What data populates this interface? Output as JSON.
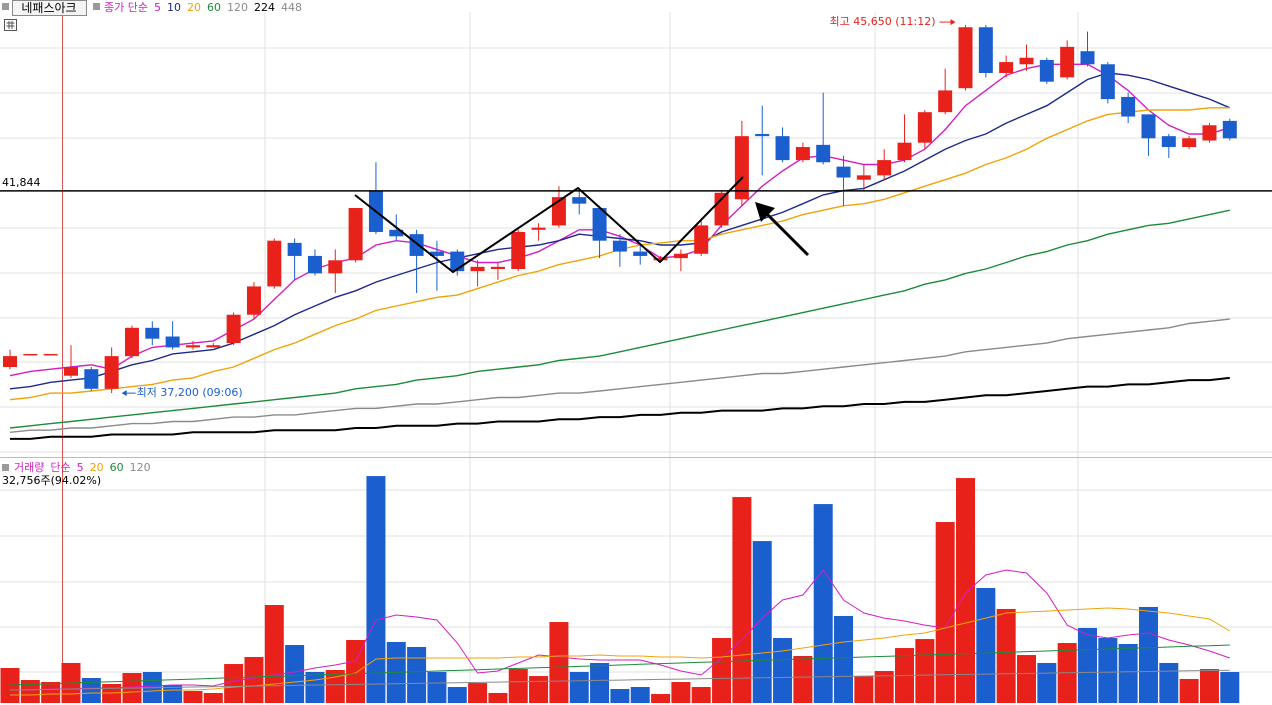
{
  "chart_data": [
    {
      "type": "candlestick",
      "name": "네패스아크",
      "legend_title": "종가 단순",
      "open": [
        37800,
        38100,
        38100,
        37600,
        37750,
        37300,
        38050,
        38700,
        38500,
        38250,
        38250,
        38350,
        39000,
        39650,
        40650,
        40350,
        39950,
        40250,
        41850,
        40950,
        40850,
        40450,
        40450,
        40000,
        40050,
        40050,
        40950,
        41050,
        41700,
        41450,
        40700,
        40450,
        40250,
        40300,
        40400,
        41050,
        41650,
        43150,
        43100,
        42550,
        42900,
        42400,
        42100,
        42200,
        42550,
        42950,
        43650,
        44200,
        45600,
        44550,
        44750,
        44850,
        44450,
        45050,
        44750,
        44000,
        43600,
        43100,
        42850,
        43000,
        43450
      ],
      "high": [
        38200,
        38100,
        38100,
        38300,
        37800,
        38250,
        38750,
        38850,
        38850,
        38400,
        38350,
        39050,
        39750,
        40750,
        40750,
        40500,
        40500,
        41450,
        42500,
        41300,
        40950,
        40700,
        40500,
        40250,
        40200,
        40950,
        41100,
        41950,
        41900,
        41500,
        40850,
        40650,
        40350,
        40500,
        41150,
        41850,
        43450,
        43800,
        43300,
        42950,
        44100,
        42650,
        42450,
        42800,
        43600,
        43700,
        44650,
        45650,
        45650,
        44950,
        45200,
        44900,
        45300,
        45500,
        44800,
        44100,
        43600,
        43150,
        43100,
        43400,
        43500
      ],
      "low": [
        37750,
        38100,
        38100,
        37550,
        37250,
        37200,
        38000,
        38300,
        38200,
        38200,
        38250,
        38300,
        38900,
        39600,
        39800,
        39900,
        39500,
        40200,
        40850,
        40700,
        39500,
        39550,
        39900,
        39650,
        39800,
        40000,
        40700,
        41000,
        41300,
        40300,
        40100,
        40150,
        40200,
        40000,
        40350,
        41000,
        41500,
        42200,
        42500,
        42500,
        42450,
        41500,
        41850,
        42100,
        42500,
        42800,
        43600,
        44150,
        44450,
        44450,
        44600,
        44300,
        44400,
        44700,
        43850,
        43400,
        42650,
        42600,
        42800,
        42950,
        43000
      ],
      "close": [
        38050,
        38100,
        38100,
        37800,
        37300,
        38050,
        38700,
        38450,
        38250,
        38300,
        38300,
        39000,
        39650,
        40700,
        40350,
        39950,
        40250,
        41450,
        40900,
        40800,
        40350,
        40350,
        40000,
        40100,
        40100,
        40900,
        41000,
        41700,
        41550,
        40700,
        40450,
        40350,
        40300,
        40400,
        41050,
        41800,
        43100,
        43100,
        42550,
        42850,
        42500,
        42150,
        42200,
        42550,
        42950,
        43650,
        44150,
        45600,
        44550,
        44800,
        44900,
        44350,
        45150,
        44750,
        43950,
        43550,
        43050,
        42850,
        43050,
        43350,
        43050
      ],
      "series": [
        {
          "name": "5",
          "color": "#d21ec3",
          "values": [
            37600,
            37700,
            37750,
            37800,
            37850,
            37750,
            38050,
            38250,
            38300,
            38350,
            38400,
            38650,
            38900,
            39350,
            39800,
            40050,
            40200,
            40300,
            40600,
            40700,
            40650,
            40500,
            40350,
            40200,
            40200,
            40300,
            40450,
            40700,
            40950,
            40950,
            40800,
            40600,
            40300,
            40350,
            40500,
            41050,
            41500,
            41950,
            42300,
            42600,
            42650,
            42550,
            42450,
            42450,
            42550,
            42800,
            43250,
            43800,
            44150,
            44500,
            44650,
            44750,
            44750,
            44750,
            44500,
            44150,
            43700,
            43350,
            43150,
            43150,
            43300
          ]
        },
        {
          "name": "10",
          "color": "#1c2a8c",
          "values": [
            37300,
            37350,
            37450,
            37500,
            37550,
            37700,
            37850,
            37950,
            38100,
            38150,
            38200,
            38350,
            38550,
            38750,
            39000,
            39200,
            39400,
            39550,
            39750,
            39900,
            40050,
            40200,
            40300,
            40400,
            40500,
            40550,
            40600,
            40700,
            40850,
            40800,
            40750,
            40700,
            40600,
            40600,
            40650,
            40900,
            41050,
            41200,
            41350,
            41550,
            41750,
            41850,
            41900,
            42100,
            42300,
            42550,
            42800,
            43000,
            43150,
            43400,
            43600,
            43800,
            44100,
            44400,
            44550,
            44500,
            44400,
            44250,
            44100,
            43950,
            43750
          ]
        },
        {
          "name": "20",
          "color": "#f0a30a",
          "values": [
            37050,
            37100,
            37200,
            37200,
            37250,
            37300,
            37350,
            37400,
            37500,
            37550,
            37700,
            37800,
            38000,
            38200,
            38350,
            38550,
            38750,
            38900,
            39100,
            39200,
            39300,
            39400,
            39450,
            39600,
            39750,
            39900,
            40000,
            40150,
            40250,
            40350,
            40500,
            40600,
            40650,
            40700,
            40700,
            40850,
            40950,
            41050,
            41150,
            41300,
            41400,
            41500,
            41550,
            41650,
            41800,
            41950,
            42100,
            42250,
            42450,
            42600,
            42800,
            43050,
            43250,
            43450,
            43600,
            43650,
            43700,
            43700,
            43700,
            43750,
            43750
          ]
        },
        {
          "name": "60",
          "color": "#1e8a3c",
          "values": [
            36400,
            36450,
            36500,
            36550,
            36600,
            36650,
            36700,
            36750,
            36800,
            36850,
            36900,
            36950,
            37000,
            37050,
            37100,
            37150,
            37200,
            37300,
            37350,
            37400,
            37500,
            37550,
            37600,
            37700,
            37750,
            37800,
            37850,
            37950,
            38000,
            38050,
            38150,
            38250,
            38350,
            38450,
            38550,
            38650,
            38750,
            38850,
            38950,
            39050,
            39150,
            39250,
            39350,
            39450,
            39550,
            39700,
            39800,
            39950,
            40050,
            40200,
            40350,
            40450,
            40600,
            40700,
            40850,
            40950,
            41050,
            41100,
            41200,
            41300,
            41400
          ]
        },
        {
          "name": "120",
          "color": "#8a8a8a",
          "values": [
            36300,
            36350,
            36350,
            36400,
            36400,
            36450,
            36500,
            36500,
            36550,
            36550,
            36600,
            36650,
            36650,
            36700,
            36700,
            36750,
            36800,
            36850,
            36850,
            36900,
            36950,
            36950,
            37000,
            37050,
            37100,
            37100,
            37150,
            37200,
            37200,
            37250,
            37300,
            37350,
            37400,
            37450,
            37500,
            37550,
            37600,
            37650,
            37650,
            37700,
            37750,
            37800,
            37850,
            37900,
            37950,
            38000,
            38050,
            38150,
            38200,
            38250,
            38300,
            38350,
            38450,
            38500,
            38550,
            38600,
            38650,
            38700,
            38800,
            38850,
            38900
          ]
        },
        {
          "name": "224",
          "color": "#000000",
          "values": [
            36150,
            36150,
            36200,
            36200,
            36200,
            36250,
            36250,
            36250,
            36250,
            36300,
            36300,
            36300,
            36300,
            36350,
            36350,
            36350,
            36350,
            36400,
            36400,
            36450,
            36450,
            36450,
            36500,
            36500,
            36550,
            36550,
            36550,
            36600,
            36600,
            36650,
            36650,
            36700,
            36700,
            36750,
            36750,
            36800,
            36800,
            36800,
            36850,
            36850,
            36900,
            36900,
            36950,
            36950,
            37000,
            37000,
            37050,
            37100,
            37150,
            37150,
            37200,
            37250,
            37300,
            37350,
            37350,
            37400,
            37400,
            37450,
            37500,
            37500,
            37550
          ]
        }
      ],
      "inactive_series": [
        {
          "name": "448",
          "color": "#8a8a8a"
        }
      ],
      "up_color": "#e8221b",
      "down_color": "#1b5fcf",
      "ylim": [
        35780,
        45950
      ],
      "reference_line": {
        "value": 41844,
        "label": "41,844"
      },
      "high_annotation": "최고 45,650 (11:12)",
      "low_annotation": "최저 37,200 (09:06)"
    },
    {
      "type": "bar",
      "title": "거래량",
      "legend_title": "단순",
      "current_label": "32,756주(94.02%)",
      "values": [
        37000,
        24300,
        22200,
        42300,
        26400,
        20100,
        31700,
        32800,
        19000,
        12700,
        10600,
        41200,
        48600,
        103600,
        61300,
        32800,
        34900,
        66600,
        239900,
        64500,
        59200,
        32800,
        16900,
        21100,
        10600,
        35900,
        28500,
        85600,
        32800,
        42300,
        14800,
        16900,
        9500,
        22200,
        16900,
        68700,
        217700,
        171200,
        68700,
        49700,
        210300,
        92000,
        28500,
        33800,
        58100,
        67600,
        191300,
        237800,
        121600,
        99400,
        50700,
        42300,
        63400,
        79300,
        68700,
        62400,
        101500,
        42300,
        25400,
        35900,
        32756
      ],
      "series": [
        {
          "name": "5",
          "color": "#d21ec3",
          "values": [
            13700,
            13700,
            14800,
            14800,
            15900,
            15900,
            16900,
            18000,
            19000,
            19000,
            18000,
            23300,
            26400,
            29600,
            32800,
            37000,
            40200,
            44400,
            87700,
            93000,
            90900,
            87700,
            63400,
            31700,
            33800,
            42300,
            50700,
            48600,
            46500,
            45500,
            45500,
            45500,
            40200,
            33800,
            29600,
            47600,
            66600,
            89800,
            108900,
            114200,
            140600,
            108900,
            95100,
            89800,
            86700,
            82400,
            79300,
            116300,
            135300,
            140600,
            137400,
            116300,
            82400,
            71900,
            68700,
            71900,
            74000,
            66600,
            61300,
            55000,
            47600
          ]
        },
        {
          "name": "20",
          "color": "#f0a30a",
          "values": [
            8500,
            8500,
            9500,
            9500,
            10600,
            10600,
            11600,
            12700,
            13700,
            13700,
            14800,
            16900,
            18000,
            20100,
            22200,
            24300,
            27500,
            31700,
            46500,
            47600,
            47600,
            47600,
            47600,
            47600,
            47600,
            48600,
            48600,
            49700,
            49700,
            50700,
            49700,
            49700,
            48600,
            48600,
            47600,
            48600,
            50700,
            52900,
            55000,
            58100,
            61300,
            64500,
            66600,
            68700,
            71900,
            74000,
            79300,
            84600,
            89800,
            95100,
            96200,
            97200,
            98300,
            99400,
            100400,
            99400,
            97200,
            95100,
            92000,
            88800,
            76100
          ]
        },
        {
          "name": "60",
          "color": "#1e8a3c",
          "values": [
            19000,
            19700,
            20400,
            21100,
            21800,
            22500,
            23200,
            23900,
            24600,
            25300,
            26000,
            26800,
            27500,
            28200,
            28900,
            29600,
            30300,
            31000,
            31700,
            32400,
            33100,
            33800,
            34500,
            35200,
            35900,
            36600,
            37300,
            38000,
            38700,
            39400,
            40200,
            40900,
            41600,
            42300,
            43000,
            43700,
            44400,
            45100,
            45800,
            46500,
            47200,
            47900,
            48600,
            49300,
            50000,
            50700,
            51400,
            52100,
            52800,
            53500,
            54300,
            55000,
            55700,
            56400,
            57100,
            57800,
            58500,
            59200,
            59900,
            60600,
            61300
          ]
        },
        {
          "name": "120",
          "color": "#8a8a8a",
          "values": [
            13700,
            14100,
            14400,
            14800,
            15100,
            15500,
            15800,
            16200,
            16500,
            16900,
            17200,
            17600,
            17900,
            18300,
            18600,
            19000,
            19300,
            19700,
            20000,
            20400,
            20700,
            21100,
            21400,
            21800,
            22100,
            22500,
            22800,
            23200,
            23500,
            23900,
            24200,
            24600,
            24900,
            25300,
            25600,
            26000,
            26300,
            26700,
            27000,
            27400,
            27700,
            28100,
            28400,
            28800,
            29100,
            29500,
            29800,
            30200,
            30500,
            30900,
            31200,
            31600,
            31900,
            32300,
            32600,
            33000,
            33300,
            33700,
            34000,
            34400,
            34700
          ]
        }
      ],
      "ylim": [
        0,
        251600
      ]
    }
  ]
}
